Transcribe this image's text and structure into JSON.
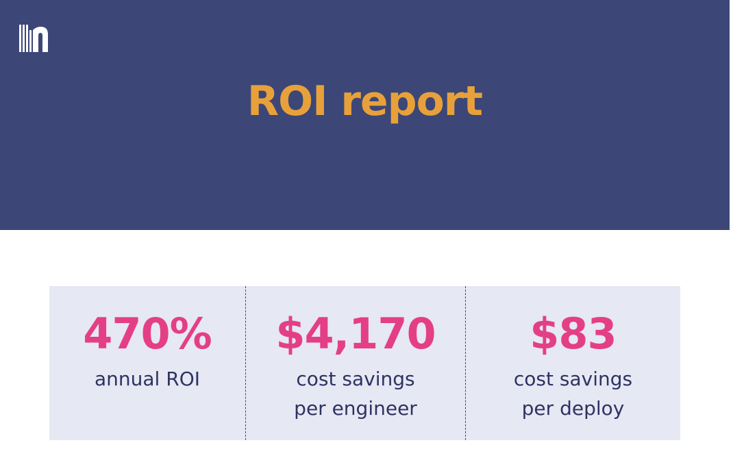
{
  "header": {
    "title": "ROI report",
    "logo_icon": "n-logo-icon"
  },
  "stats": [
    {
      "value": "470%",
      "label": "annual ROI"
    },
    {
      "value": "$4,170",
      "label": "cost savings\nper engineer"
    },
    {
      "value": "$83",
      "label": "cost savings\nper deploy"
    }
  ],
  "colors": {
    "header_bg": "#3c4777",
    "title": "#e8a13a",
    "value": "#e43f86",
    "label": "#2f3263",
    "panel_bg": "#e6e8f3"
  }
}
